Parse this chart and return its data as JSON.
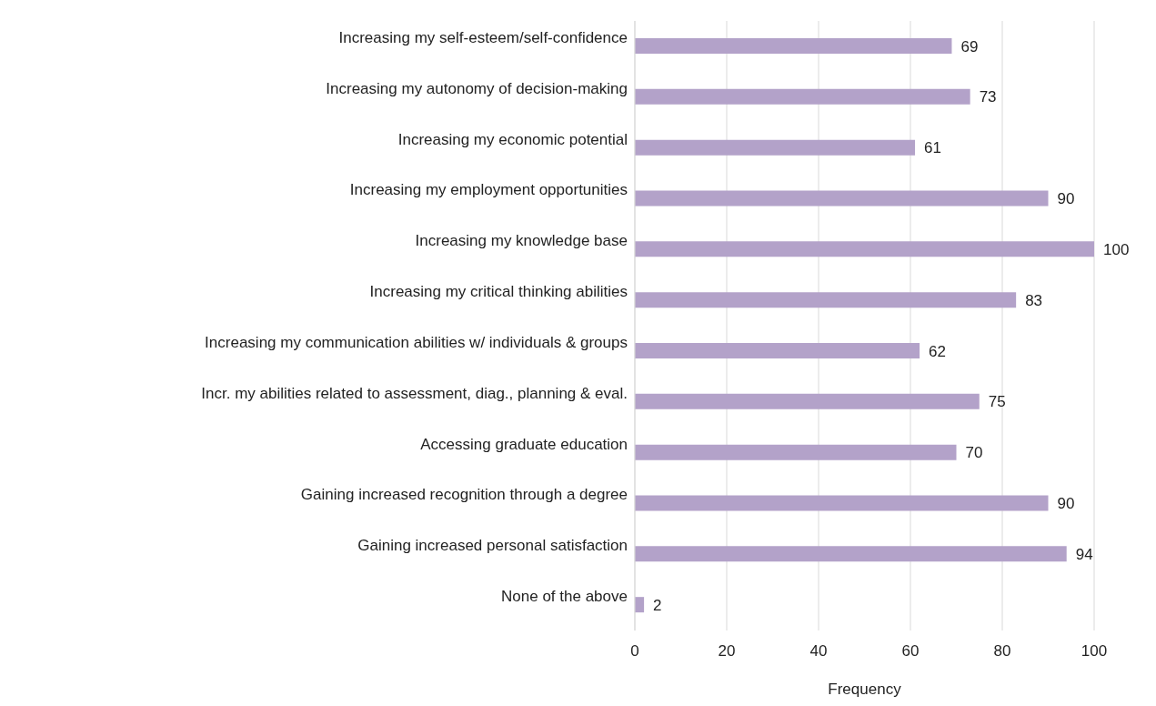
{
  "chart_data": {
    "type": "bar",
    "orientation": "horizontal",
    "xlabel": "Frequency",
    "categories": [
      "Increasing my self-esteem/self-confidence",
      "Increasing my autonomy of decision-making",
      "Increasing my economic potential",
      "Increasing my employment opportunities",
      "Increasing my knowledge base",
      "Increasing my critical thinking abilities",
      "Increasing my communication abilities w/ individuals & groups",
      "Incr. my abilities related to assessment, diag., planning & eval.",
      "Accessing graduate education",
      "Gaining increased recognition through a degree",
      "Gaining increased personal satisfaction",
      "None of the above"
    ],
    "values": [
      69,
      73,
      61,
      90,
      100,
      83,
      62,
      75,
      70,
      90,
      94,
      2
    ],
    "color": "#b3a2c9",
    "xlim": [
      0,
      100
    ],
    "xticks": [
      0,
      20,
      40,
      60,
      80,
      100
    ],
    "grid": "x",
    "data_labels": true
  }
}
